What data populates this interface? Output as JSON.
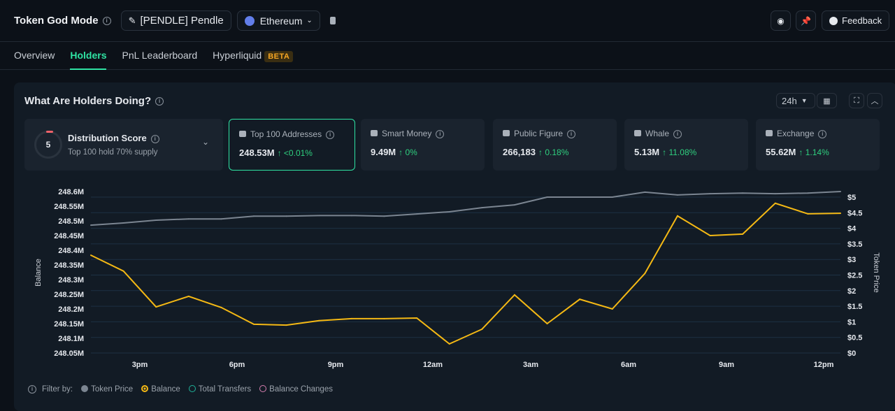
{
  "header": {
    "title": "Token God Mode",
    "token": "[PENDLE] Pendle",
    "chain": "Ethereum",
    "feedback": "Feedback"
  },
  "tabs": [
    {
      "label": "Overview"
    },
    {
      "label": "Holders",
      "active": true
    },
    {
      "label": "PnL Leaderboard"
    },
    {
      "label": "Hyperliquid",
      "badge": "BETA"
    }
  ],
  "panel": {
    "title": "What Are Holders Doing?",
    "timeframe": "24h"
  },
  "distribution": {
    "score": "5",
    "title": "Distribution Score",
    "subtitle": "Top 100 hold 70% supply"
  },
  "metrics": [
    {
      "label": "Top 100 Addresses",
      "value": "248.53M",
      "change": "↑ <0.01%",
      "icon": "wallet-icon",
      "selected": true
    },
    {
      "label": "Smart Money",
      "value": "9.49M",
      "change": "↑ 0%",
      "icon": "smart-money-icon"
    },
    {
      "label": "Public Figure",
      "value": "266,183",
      "change": "↑ 0.18%",
      "icon": "public-figure-icon"
    },
    {
      "label": "Whale",
      "value": "5.13M",
      "change": "↑ 11.08%",
      "icon": "whale-icon"
    },
    {
      "label": "Exchange",
      "value": "55.62M",
      "change": "↑ 1.14%",
      "icon": "exchange-icon"
    }
  ],
  "legend": {
    "prefix": "Filter by:",
    "items": [
      {
        "label": "Token Price",
        "color": "#7b8591"
      },
      {
        "label": "Balance",
        "color": "#f5b914"
      },
      {
        "label": "Total Transfers",
        "color": "#1fb39a"
      },
      {
        "label": "Balance Changes",
        "color": "#d77fb0"
      }
    ]
  },
  "chart_data": {
    "type": "line",
    "ylabel": "Balance",
    "y2label": "Token Price",
    "yticks": [
      "248.6M",
      "248.55M",
      "248.5M",
      "248.45M",
      "248.4M",
      "248.35M",
      "248.3M",
      "248.25M",
      "248.2M",
      "248.15M",
      "248.1M",
      "248.05M"
    ],
    "y2ticks": [
      "$5",
      "$4.5",
      "$4",
      "$3.5",
      "$3",
      "$2.5",
      "$2",
      "$1.5",
      "$1",
      "$0.5",
      "$0"
    ],
    "xticks": [
      "3pm",
      "6pm",
      "9pm",
      "12am",
      "3am",
      "6am",
      "9am",
      "12pm"
    ],
    "ylim": [
      248.05,
      248.6
    ],
    "y2lim": [
      0,
      5
    ],
    "series": [
      {
        "name": "Balance",
        "axis": "left",
        "color": "#f5b914",
        "values": [
          248.383,
          248.329,
          248.207,
          248.243,
          248.205,
          248.148,
          248.145,
          248.16,
          248.167,
          248.167,
          248.169,
          248.081,
          248.131,
          248.248,
          248.15,
          248.233,
          248.2,
          248.321,
          248.517,
          248.45,
          248.455,
          248.56,
          248.524,
          248.526
        ]
      },
      {
        "name": "Token Price",
        "axis": "right",
        "color": "#7b8591",
        "values": [
          4.1,
          4.17,
          4.26,
          4.3,
          4.3,
          4.39,
          4.39,
          4.41,
          4.41,
          4.39,
          4.46,
          4.53,
          4.66,
          4.75,
          5.0,
          5.0,
          5.0,
          5.16,
          5.07,
          5.11,
          5.13,
          5.11,
          5.13,
          5.18
        ]
      }
    ]
  }
}
